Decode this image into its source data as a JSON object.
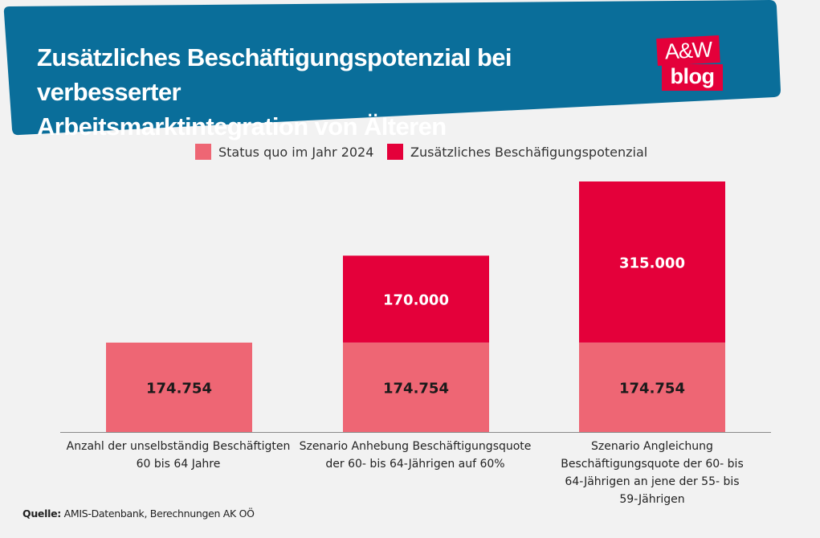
{
  "header": {
    "title_line1": "Zusätzliches Beschäftigungspotenzial bei verbesserter",
    "title_line2": "Arbeitsmarktintegration von Älteren",
    "banner_color": "#0a6e9a"
  },
  "logo": {
    "line1": "A&W",
    "line2": "blog",
    "color": "#e4003a"
  },
  "chart_data": {
    "type": "bar",
    "stacked": true,
    "title": "Zusätzliches Beschäftigungspotenzial bei verbesserter Arbeitsmarktintegration von Älteren",
    "categories": [
      "Anzahl der unselbständig Beschäftigten 60 bis 64 Jahre",
      "Szenario Anhebung Beschäftigungsquote der 60- bis 64-Jährigen auf 60%",
      "Szenario Angleichung Beschäftigungsquote der 60- bis 64-Jährigen an jene der 55- bis 59-Jährigen"
    ],
    "category_lines": [
      [
        "Anzahl der unselbständig Beschäftigten",
        "60 bis 64 Jahre"
      ],
      [
        "Szenario Anhebung Beschäftigungsquote",
        "der 60- bis 64-Jährigen auf 60%"
      ],
      [
        "Szenario Angleichung",
        "Beschäftigungsquote der 60- bis",
        "64-Jährigen an jene der 55- bis",
        "59-Jährigen"
      ]
    ],
    "series": [
      {
        "name": "Status quo im Jahr 2024",
        "color": "#ee6674",
        "values": [
          174754,
          174754,
          174754
        ],
        "labels": [
          "174.754",
          "174.754",
          "174.754"
        ]
      },
      {
        "name": "Zusätzliches Beschäfigungspotenzial",
        "color": "#e4003a",
        "values": [
          0,
          170000,
          315000
        ],
        "labels": [
          "",
          "170.000",
          "315.000"
        ]
      }
    ],
    "ylim": [
      0,
      510000
    ],
    "grid": false,
    "legend_position": "top-center",
    "xlabel": "",
    "ylabel": ""
  },
  "source": {
    "label": "Quelle:",
    "text": " AMIS-Datenbank, Berechnungen AK OÖ"
  }
}
